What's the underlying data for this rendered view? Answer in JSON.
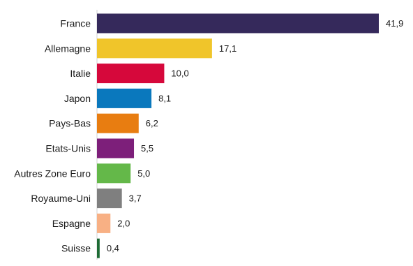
{
  "chart_data": {
    "type": "bar",
    "orientation": "horizontal",
    "categories": [
      "France",
      "Allemagne",
      "Italie",
      "Japon",
      "Pays-Bas",
      "Etats-Unis",
      "Autres Zone Euro",
      "Royaume-Uni",
      "Espagne",
      "Suisse"
    ],
    "values": [
      41.9,
      17.1,
      10.0,
      8.1,
      6.2,
      5.5,
      5.0,
      3.7,
      2.0,
      0.4
    ],
    "value_labels": [
      "41,9",
      "17,1",
      "10,0",
      "8,1",
      "6,2",
      "5,5",
      "5,0",
      "3,7",
      "2,0",
      "0,4"
    ],
    "colors": [
      "#35295b",
      "#f0c52a",
      "#d6083b",
      "#0a78bd",
      "#e87d11",
      "#7d1f7a",
      "#64b849",
      "#7f7f7f",
      "#f8b084",
      "#1e6b35"
    ],
    "title": "",
    "xlabel": "",
    "ylabel": "",
    "xlim": [
      0,
      41.9
    ],
    "grid": false,
    "legend": "none"
  }
}
